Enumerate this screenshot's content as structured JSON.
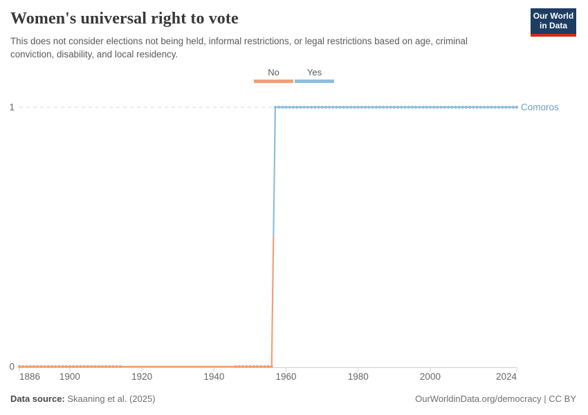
{
  "header": {
    "title": "Women's universal right to vote",
    "subtitle": "This does not consider elections not being held, informal restrictions, or legal restrictions based on age, criminal conviction, disability, and local residency."
  },
  "logo": {
    "line1": "Our World",
    "line2": "in Data",
    "background": "#1d3d63",
    "underline": "#d12b1e"
  },
  "legend": {
    "items": [
      {
        "label": "No",
        "color": "#F0A077"
      },
      {
        "label": "Yes",
        "color": "#8CBEDC"
      }
    ]
  },
  "chart_data": {
    "type": "line",
    "subtype": "step",
    "title": "Women's universal right to vote",
    "entity_label": "Comoros",
    "entity_label_color": "#6D9EC4",
    "x_range": [
      1886,
      2024
    ],
    "x_ticks": [
      "1886",
      "1900",
      "1920",
      "1940",
      "1960",
      "1980",
      "2000",
      "2024"
    ],
    "x_tick_years": [
      1886,
      1900,
      1920,
      1940,
      1960,
      1980,
      2000,
      2024
    ],
    "y_ticks": [
      "0",
      "1"
    ],
    "y_tick_values": [
      0,
      1
    ],
    "ylim": [
      0,
      1
    ],
    "grid": "dashed line at y=1",
    "legend_position": "top-center",
    "series": [
      {
        "name": "Comoros",
        "segments": [
          {
            "value": 0,
            "value_label": "No",
            "start_year": 1886,
            "end_year": 1956,
            "color": "#F0A077",
            "marker_year_runs": [
              [
                1886,
                1914
              ],
              [
                1946,
                1956
              ]
            ]
          },
          {
            "value": 1,
            "value_label": "Yes",
            "start_year": 1957,
            "end_year": 2024,
            "color": "#8CBEDC",
            "marker_year_runs": [
              [
                1957,
                2024
              ]
            ]
          }
        ]
      }
    ]
  },
  "footer": {
    "source_label": "Data source:",
    "source_value": "Skaaning et al. (2025)",
    "credit": "OurWorldinData.org/democracy | CC BY"
  }
}
